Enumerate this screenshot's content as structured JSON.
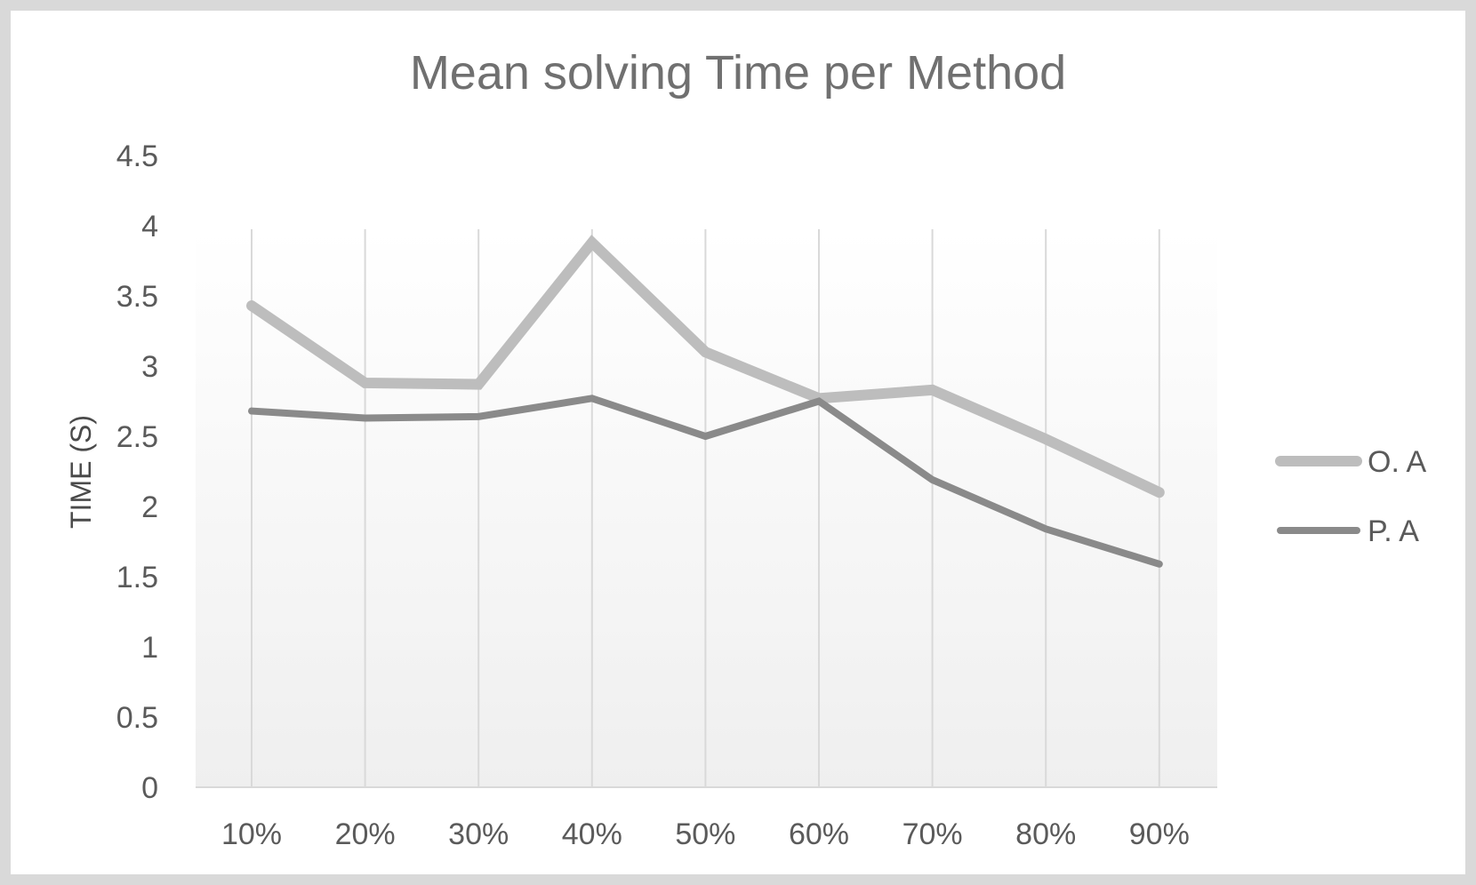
{
  "chart_data": {
    "type": "line",
    "title": "Mean solving Time per Method",
    "xlabel": "",
    "ylabel": "TIME (S)",
    "categories": [
      "10%",
      "20%",
      "30%",
      "40%",
      "50%",
      "60%",
      "70%",
      "80%",
      "90%"
    ],
    "ylim": [
      0,
      4.5
    ],
    "yticks": [
      "0",
      "0.5",
      "1",
      "1.5",
      "2",
      "2.5",
      "3",
      "3.5",
      "4",
      "4.5"
    ],
    "grid": "vertical",
    "legend": "right",
    "series": [
      {
        "name": "O. A",
        "color": "#bdbdbd",
        "values": [
          3.43,
          2.88,
          2.87,
          3.88,
          3.1,
          2.77,
          2.83,
          2.48,
          2.1
        ]
      },
      {
        "name": "P. A",
        "color": "#8a8a8a",
        "values": [
          2.68,
          2.63,
          2.64,
          2.77,
          2.5,
          2.75,
          2.19,
          1.84,
          1.59
        ]
      }
    ]
  }
}
